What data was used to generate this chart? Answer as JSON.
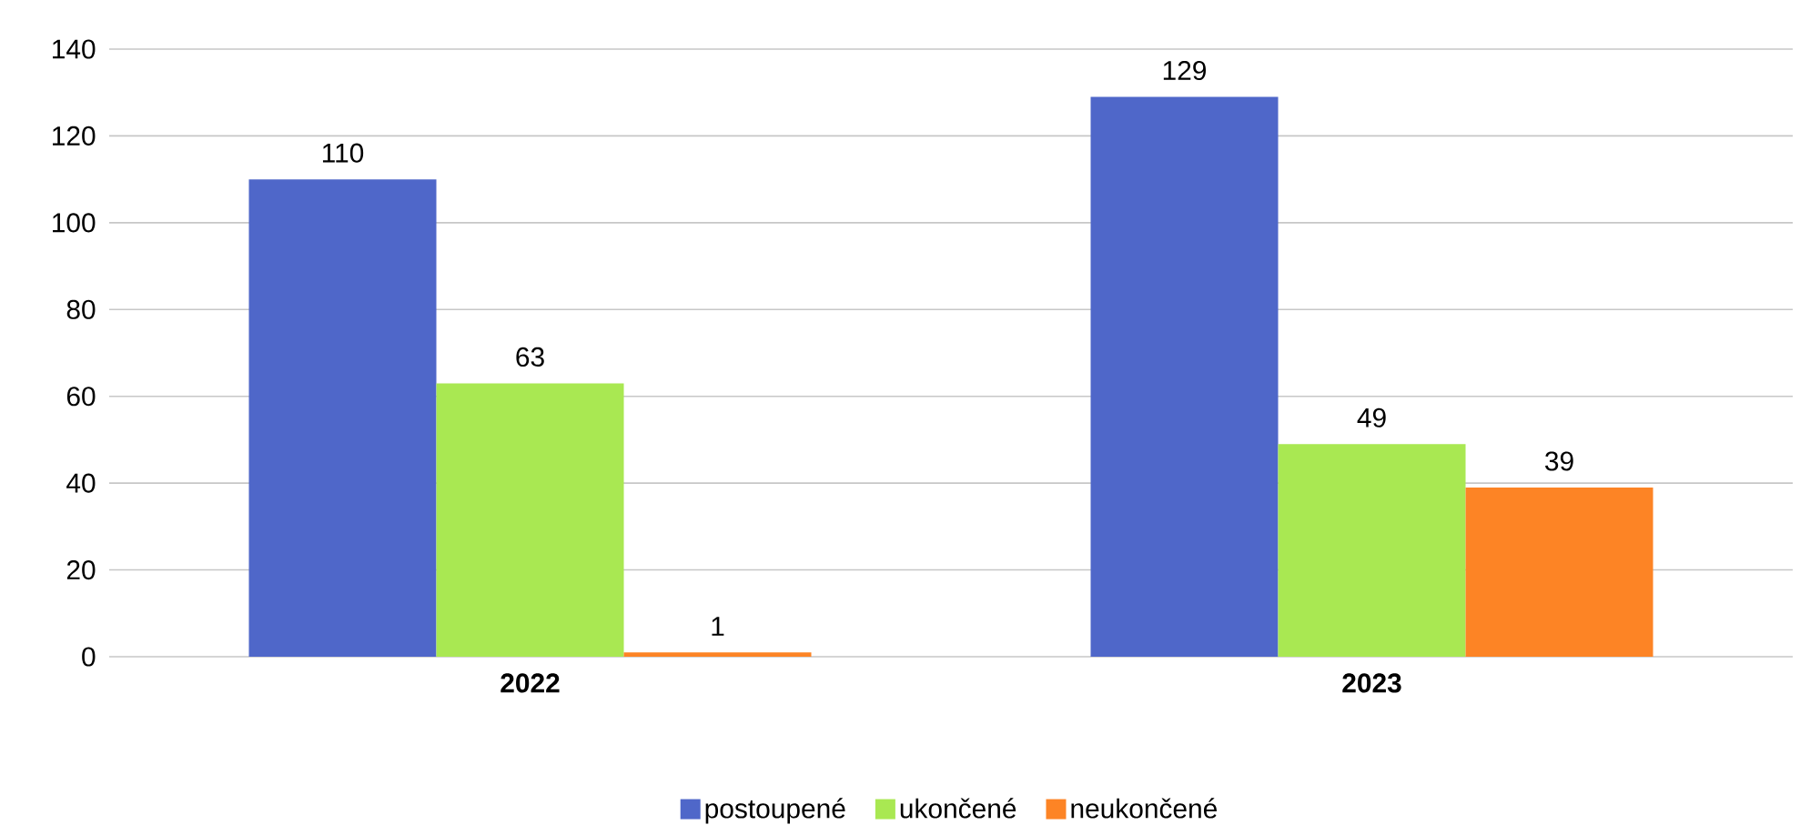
{
  "chart_data": {
    "type": "bar",
    "categories": [
      "2022",
      "2023"
    ],
    "series": [
      {
        "name": "postoupené",
        "color": "#4f67c9",
        "values": [
          110,
          129
        ]
      },
      {
        "name": "ukončené",
        "color": "#a9e852",
        "values": [
          63,
          49
        ]
      },
      {
        "name": "neukončené",
        "color": "#fd8425",
        "values": [
          1,
          39
        ]
      }
    ],
    "ylim": [
      0,
      140
    ],
    "yticks": [
      0,
      20,
      40,
      60,
      80,
      100,
      120,
      140
    ],
    "grid": "y",
    "legend": "bottom",
    "data_labels": true
  }
}
